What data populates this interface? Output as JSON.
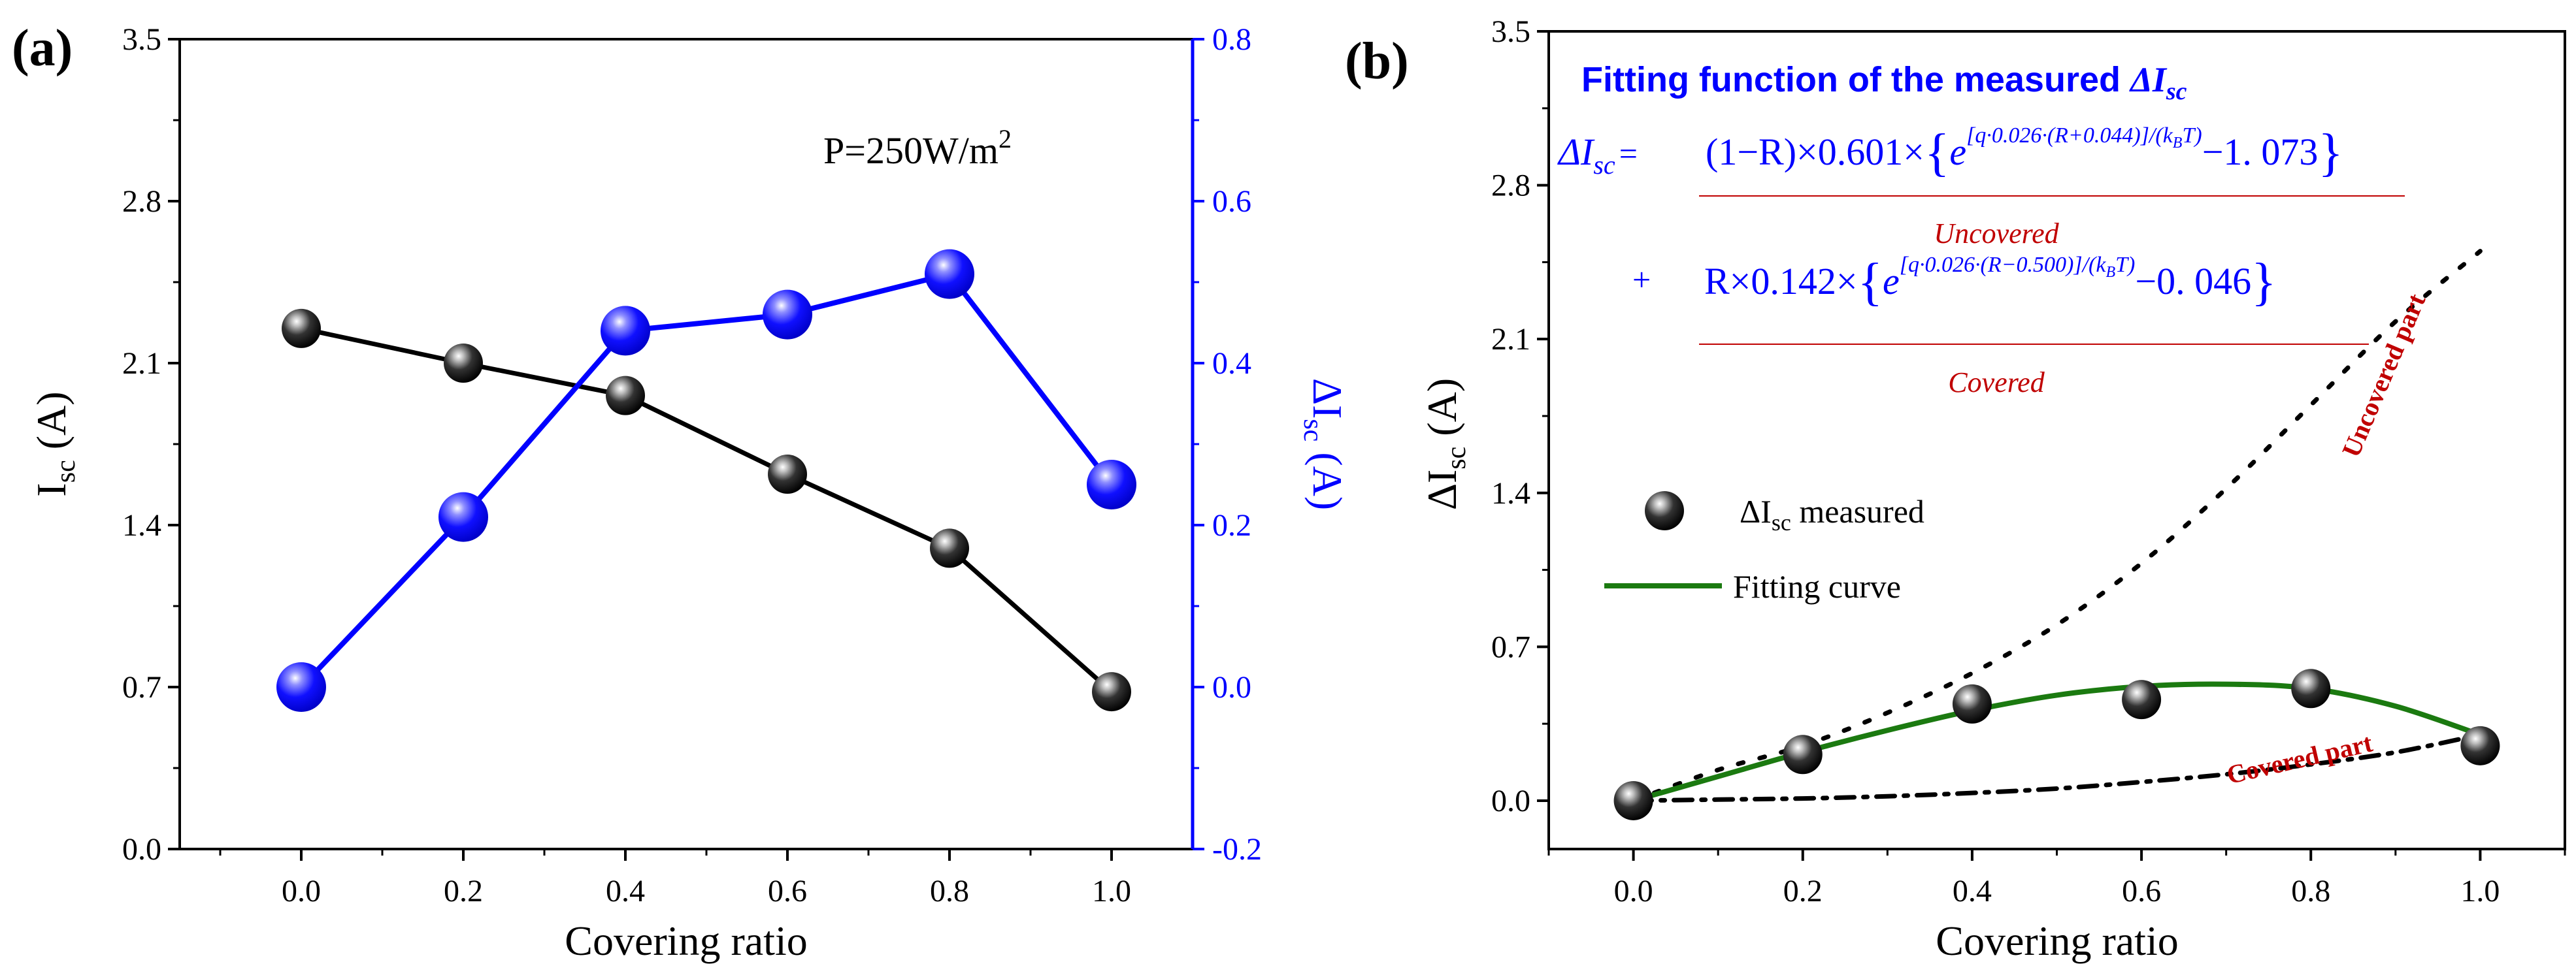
{
  "figure": {
    "panel_a_label": "(a)",
    "panel_b_label": "(b)"
  },
  "chart_data": [
    {
      "type": "line",
      "panel": "(a)",
      "xlabel": "Covering ratio",
      "ylabel_main": "I",
      "ylabel_sub": "sc",
      "ylabel_unit": " (A)",
      "y2label_main": "ΔI",
      "y2label_sub": "sc",
      "y2label_unit": " (A)",
      "xlim": [
        -0.15,
        1.1
      ],
      "ylim": [
        0.0,
        3.5
      ],
      "y2lim": [
        -0.2,
        0.8
      ],
      "xticks": [
        "0.0",
        "0.2",
        "0.4",
        "0.6",
        "0.8",
        "1.0"
      ],
      "yticks": [
        "0.0",
        "0.7",
        "1.4",
        "2.1",
        "2.8",
        "3.5"
      ],
      "y2ticks": [
        "-0.2",
        "0.0",
        "0.2",
        "0.4",
        "0.6",
        "0.8"
      ],
      "annotation_main": "P=250W/m",
      "annotation_sup": "2",
      "series": [
        {
          "name": "Isc",
          "axis": "left",
          "color": "#000000",
          "x": [
            0.0,
            0.2,
            0.4,
            0.6,
            0.8,
            1.0
          ],
          "values": [
            2.25,
            2.1,
            1.96,
            1.62,
            1.3,
            0.68
          ]
        },
        {
          "name": "ΔIsc",
          "axis": "right",
          "color": "#0000ff",
          "x": [
            0.0,
            0.2,
            0.4,
            0.6,
            0.8,
            1.0
          ],
          "values": [
            0.0,
            0.21,
            0.44,
            0.46,
            0.51,
            0.25
          ]
        }
      ]
    },
    {
      "type": "scatter",
      "panel": "(b)",
      "xlabel": "Covering ratio",
      "ylabel_main": "ΔI",
      "ylabel_sub": "sc",
      "ylabel_unit": " (A)",
      "xlim": [
        -0.1,
        1.1
      ],
      "ylim": [
        -0.22,
        3.5
      ],
      "xticks": [
        "0.0",
        "0.2",
        "0.4",
        "0.6",
        "0.8",
        "1.0"
      ],
      "yticks": [
        "0.0",
        "0.7",
        "1.4",
        "2.1",
        "2.8",
        "3.5"
      ],
      "measured": {
        "x": [
          0.0,
          0.2,
          0.4,
          0.6,
          0.8,
          1.0
        ],
        "values": [
          0.0,
          0.21,
          0.44,
          0.46,
          0.51,
          0.25
        ]
      },
      "fitting_curve": {
        "x": [
          0.0,
          0.1,
          0.2,
          0.3,
          0.4,
          0.5,
          0.6,
          0.7,
          0.8,
          0.9,
          1.0
        ],
        "values": [
          0.0,
          0.11,
          0.22,
          0.32,
          0.41,
          0.48,
          0.52,
          0.53,
          0.51,
          0.43,
          0.3
        ]
      },
      "uncovered_curve": {
        "x": [
          0.0,
          0.1,
          0.2,
          0.3,
          0.4,
          0.5,
          0.6,
          0.7,
          0.8,
          0.9,
          1.0
        ],
        "values": [
          0.0,
          0.14,
          0.25,
          0.4,
          0.58,
          0.8,
          1.08,
          1.42,
          1.8,
          2.18,
          2.5
        ]
      },
      "covered_curve": {
        "x": [
          0.0,
          0.1,
          0.2,
          0.3,
          0.4,
          0.5,
          0.6,
          0.7,
          0.8,
          0.9,
          1.0
        ],
        "values": [
          0.0,
          0.005,
          0.01,
          0.02,
          0.035,
          0.055,
          0.085,
          0.12,
          0.165,
          0.22,
          0.3
        ]
      },
      "legend": {
        "measured_label_main": "ΔI",
        "measured_label_sub": "sc",
        "measured_label_rest": " measured",
        "fitting_label": "Fitting curve"
      },
      "curve_labels": {
        "uncovered_part": "Uncovered part",
        "covered_part": "Covered part"
      },
      "formula": {
        "title_text": "Fitting function of the measured ",
        "title_var": "ΔI",
        "title_sub": "sc",
        "lhs_var": "ΔI",
        "lhs_sub": "sc",
        "lhs_eq": "=",
        "line1_coeff": "(1−R)×0.601×",
        "line1_exponent": "[q·0.026·(R+0.044)]/(k",
        "line1_exponent_sub": "B",
        "line1_exponent_end": "T)",
        "line1_tail": "−1. 073",
        "line2_plus": "+",
        "line2_coeff": "R×0.142×",
        "line2_exponent": "[q·0.026·(R−0.500)]/(k",
        "line2_exponent_sub": "B",
        "line2_exponent_end": "T)",
        "line2_tail": "−0. 046",
        "e": "e",
        "brace_open": "{",
        "brace_close": "}",
        "uncovered_label": "Uncovered",
        "covered_label": "Covered"
      }
    }
  ],
  "colors": {
    "black": "#000000",
    "blue": "#0000ff",
    "green": "#1b7a10",
    "red": "#c00000"
  }
}
